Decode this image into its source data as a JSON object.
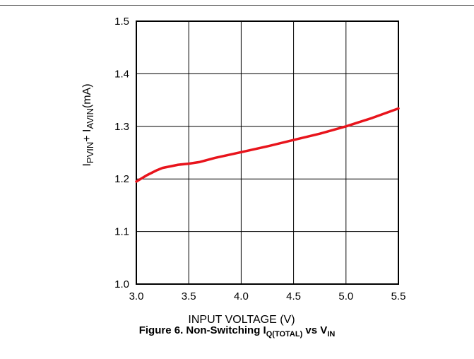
{
  "chart_data": {
    "type": "line",
    "title": "",
    "xlabel": "INPUT VOLTAGE (V)",
    "ylabel": {
      "i1": "I",
      "s1": "PVIN",
      "plus": "+ ",
      "i2": "I",
      "s2": "AVIN",
      "unit": "(mA)"
    },
    "xlim": [
      3.0,
      5.5
    ],
    "ylim": [
      1.0,
      1.5
    ],
    "x_ticks": [
      3.0,
      3.5,
      4.0,
      4.5,
      5.0,
      5.5
    ],
    "x_tick_labels": [
      "3.0",
      "3.5",
      "4.0",
      "4.5",
      "5.0",
      "5.5"
    ],
    "y_ticks": [
      1.0,
      1.1,
      1.2,
      1.3,
      1.4,
      1.5
    ],
    "y_tick_labels": [
      "1.0",
      "1.1",
      "1.2",
      "1.3",
      "1.4",
      "1.5"
    ],
    "grid": true,
    "series": [
      {
        "color": "#e8141c",
        "x": [
          3.0,
          3.1,
          3.2,
          3.25,
          3.3,
          3.4,
          3.5,
          3.6,
          3.75,
          4.0,
          4.25,
          4.5,
          4.75,
          5.0,
          5.25,
          5.5
        ],
        "y": [
          1.195,
          1.207,
          1.217,
          1.221,
          1.223,
          1.227,
          1.229,
          1.232,
          1.24,
          1.251,
          1.262,
          1.274,
          1.286,
          1.3,
          1.316,
          1.334
        ]
      }
    ]
  },
  "caption": {
    "prefix": "Figure 6. Non-Switching I",
    "sub1": "Q(TOTAL)",
    "mid": " vs V",
    "sub2": "IN"
  }
}
